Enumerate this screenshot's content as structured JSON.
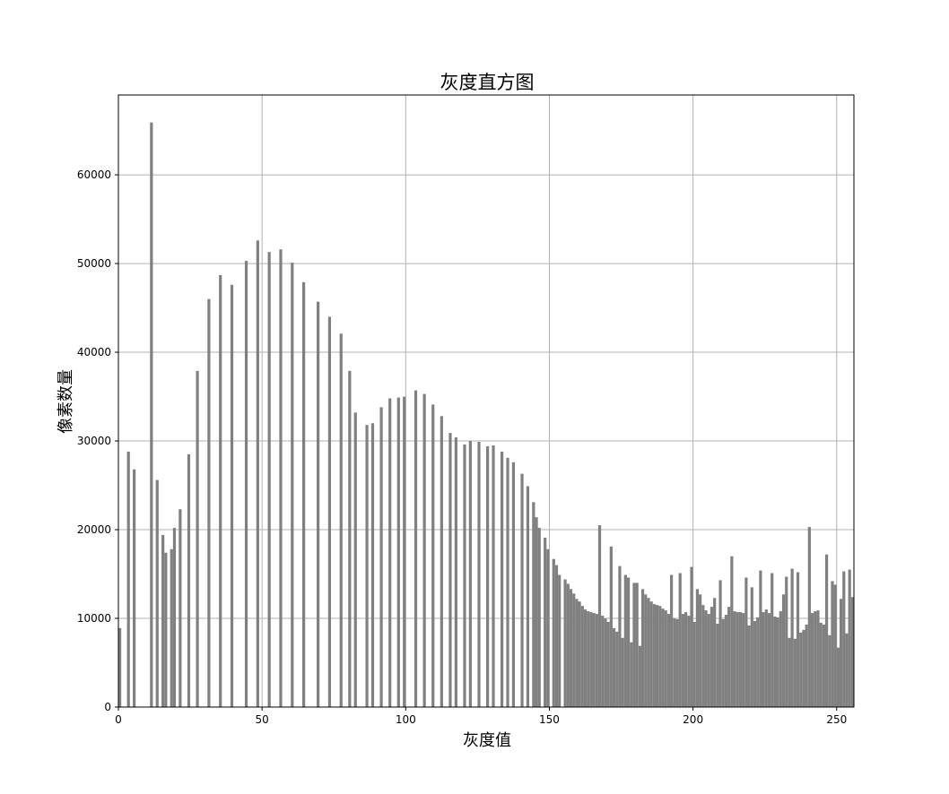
{
  "chart_data": {
    "type": "bar",
    "title": "灰度直方图",
    "xlabel": "灰度值",
    "ylabel": "像素数量",
    "xlim": [
      0,
      256
    ],
    "ylim": [
      0,
      69000
    ],
    "xticks": [
      0,
      50,
      100,
      150,
      200,
      250
    ],
    "yticks": [
      0,
      10000,
      20000,
      30000,
      40000,
      50000,
      60000
    ],
    "grid": true,
    "bar_color": "#808080",
    "bins": [
      [
        0,
        8900
      ],
      [
        3,
        28800
      ],
      [
        5,
        26800
      ],
      [
        11,
        65900
      ],
      [
        13,
        25600
      ],
      [
        15,
        19400
      ],
      [
        16,
        17400
      ],
      [
        18,
        17800
      ],
      [
        19,
        20200
      ],
      [
        21,
        22300
      ],
      [
        24,
        28500
      ],
      [
        27,
        37900
      ],
      [
        31,
        46000
      ],
      [
        35,
        48700
      ],
      [
        39,
        47600
      ],
      [
        44,
        50300
      ],
      [
        48,
        52600
      ],
      [
        52,
        51300
      ],
      [
        56,
        51600
      ],
      [
        60,
        50100
      ],
      [
        64,
        47900
      ],
      [
        69,
        45700
      ],
      [
        73,
        44000
      ],
      [
        77,
        42100
      ],
      [
        80,
        37900
      ],
      [
        82,
        33200
      ],
      [
        86,
        31800
      ],
      [
        88,
        32000
      ],
      [
        91,
        33800
      ],
      [
        94,
        34800
      ],
      [
        97,
        34900
      ],
      [
        99,
        35000
      ],
      [
        103,
        35700
      ],
      [
        106,
        35300
      ],
      [
        109,
        34100
      ],
      [
        112,
        32800
      ],
      [
        115,
        30900
      ],
      [
        117,
        30400
      ],
      [
        120,
        29600
      ],
      [
        122,
        30000
      ],
      [
        125,
        29900
      ],
      [
        128,
        29400
      ],
      [
        130,
        29500
      ],
      [
        133,
        28800
      ],
      [
        135,
        28100
      ],
      [
        137,
        27600
      ],
      [
        140,
        26300
      ],
      [
        142,
        24900
      ],
      [
        144,
        23100
      ],
      [
        145,
        21400
      ],
      [
        146,
        20200
      ],
      [
        148,
        19100
      ],
      [
        149,
        17800
      ],
      [
        151,
        16700
      ],
      [
        152,
        16000
      ],
      [
        153,
        14900
      ],
      [
        155,
        14400
      ],
      [
        156,
        13900
      ],
      [
        157,
        13300
      ],
      [
        158,
        12800
      ],
      [
        159,
        12200
      ],
      [
        160,
        11900
      ],
      [
        161,
        11400
      ],
      [
        162,
        11000
      ],
      [
        163,
        10800
      ],
      [
        164,
        10700
      ],
      [
        165,
        10600
      ],
      [
        166,
        10500
      ],
      [
        167,
        20500
      ],
      [
        168,
        10300
      ],
      [
        169,
        10000
      ],
      [
        170,
        9600
      ],
      [
        171,
        18100
      ],
      [
        172,
        8900
      ],
      [
        173,
        8500
      ],
      [
        174,
        15900
      ],
      [
        175,
        7800
      ],
      [
        176,
        14900
      ],
      [
        177,
        14600
      ],
      [
        178,
        7300
      ],
      [
        179,
        14000
      ],
      [
        180,
        14000
      ],
      [
        181,
        6900
      ],
      [
        182,
        13300
      ],
      [
        183,
        12700
      ],
      [
        184,
        12300
      ],
      [
        185,
        11900
      ],
      [
        186,
        11600
      ],
      [
        187,
        11500
      ],
      [
        188,
        11400
      ],
      [
        189,
        11100
      ],
      [
        190,
        10900
      ],
      [
        191,
        10500
      ],
      [
        192,
        14900
      ],
      [
        193,
        10000
      ],
      [
        194,
        9900
      ],
      [
        195,
        15100
      ],
      [
        196,
        10500
      ],
      [
        197,
        10700
      ],
      [
        198,
        10300
      ],
      [
        199,
        15800
      ],
      [
        200,
        9600
      ],
      [
        201,
        13300
      ],
      [
        202,
        12700
      ],
      [
        203,
        11500
      ],
      [
        204,
        10900
      ],
      [
        205,
        10500
      ],
      [
        206,
        11300
      ],
      [
        207,
        12300
      ],
      [
        208,
        9400
      ],
      [
        209,
        14300
      ],
      [
        210,
        9900
      ],
      [
        211,
        10400
      ],
      [
        212,
        11300
      ],
      [
        213,
        17000
      ],
      [
        214,
        10800
      ],
      [
        215,
        10700
      ],
      [
        216,
        10700
      ],
      [
        217,
        10600
      ],
      [
        218,
        14600
      ],
      [
        219,
        9200
      ],
      [
        220,
        13500
      ],
      [
        221,
        9700
      ],
      [
        222,
        10100
      ],
      [
        223,
        15400
      ],
      [
        224,
        10700
      ],
      [
        225,
        11000
      ],
      [
        226,
        10600
      ],
      [
        227,
        15100
      ],
      [
        228,
        10200
      ],
      [
        229,
        10100
      ],
      [
        230,
        10800
      ],
      [
        231,
        12700
      ],
      [
        232,
        14700
      ],
      [
        233,
        7800
      ],
      [
        234,
        15600
      ],
      [
        235,
        7700
      ],
      [
        236,
        15200
      ],
      [
        237,
        8400
      ],
      [
        238,
        8700
      ],
      [
        239,
        9300
      ],
      [
        240,
        20300
      ],
      [
        241,
        10600
      ],
      [
        242,
        10800
      ],
      [
        243,
        10900
      ],
      [
        244,
        9500
      ],
      [
        245,
        9300
      ],
      [
        246,
        17200
      ],
      [
        247,
        8100
      ],
      [
        248,
        14200
      ],
      [
        249,
        13800
      ],
      [
        250,
        6700
      ],
      [
        251,
        12200
      ],
      [
        252,
        15300
      ],
      [
        253,
        8300
      ],
      [
        254,
        15500
      ],
      [
        255,
        12400
      ]
    ]
  }
}
